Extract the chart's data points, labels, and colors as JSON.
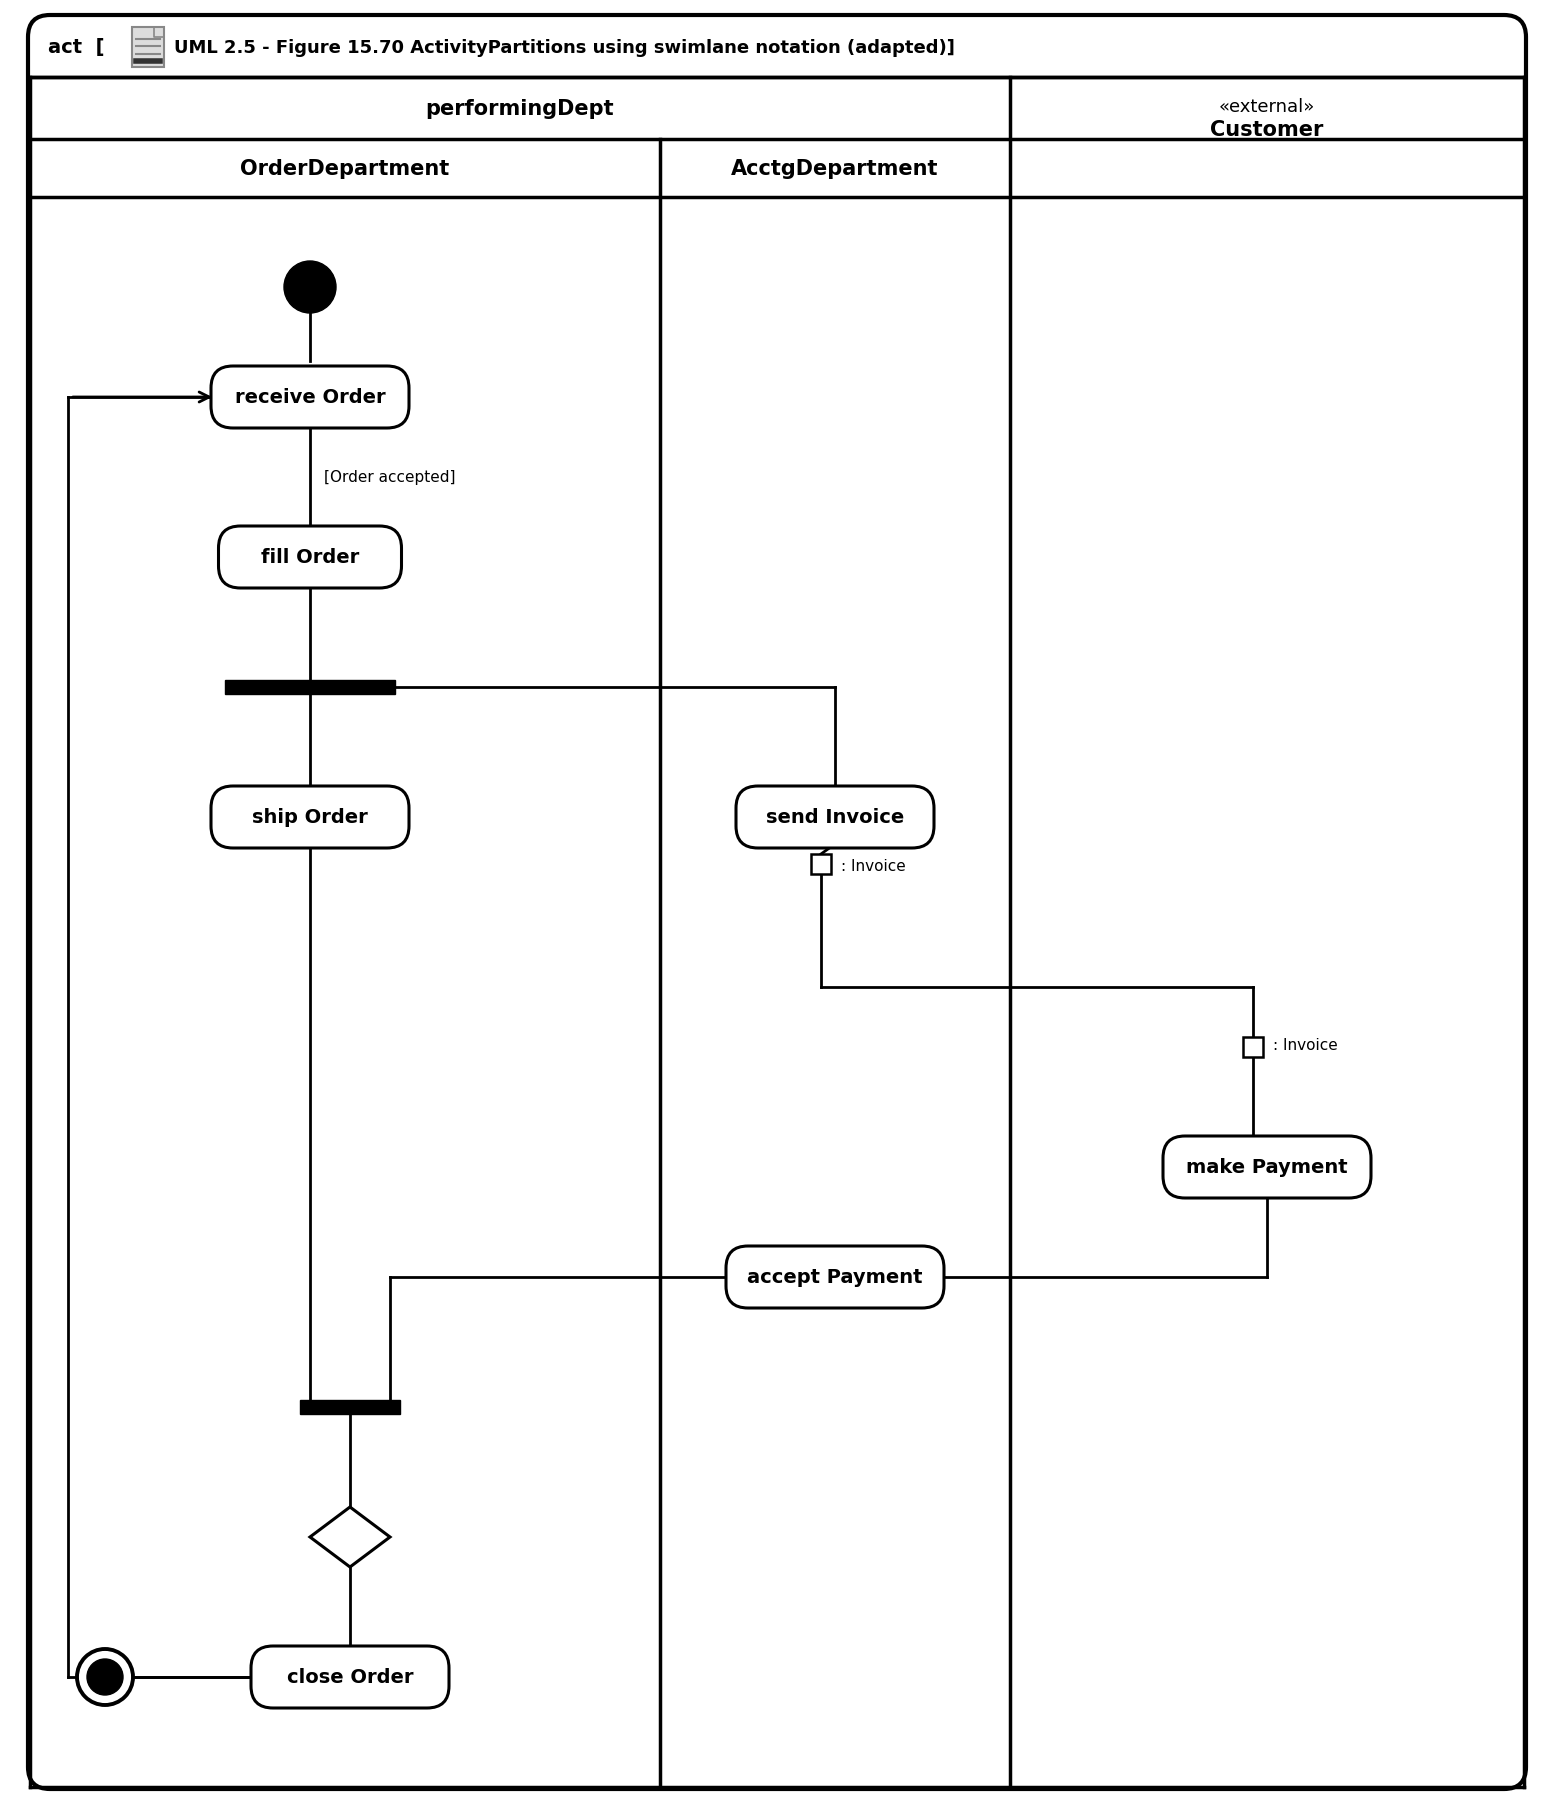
{
  "fig_width": 15.54,
  "fig_height": 18.06,
  "bg_color": "#ffffff",
  "performing_dept_label": "performingDept",
  "lane1_label": "OrderDepartment",
  "lane2_label": "AcctgDepartment",
  "lane3_label1": "«external»",
  "lane3_label2": "Customer",
  "title_act": "act  [",
  "title_rest": "UML 2.5 - Figure 15.70 ActivityPartitions using swimlane notation (adapted)]"
}
